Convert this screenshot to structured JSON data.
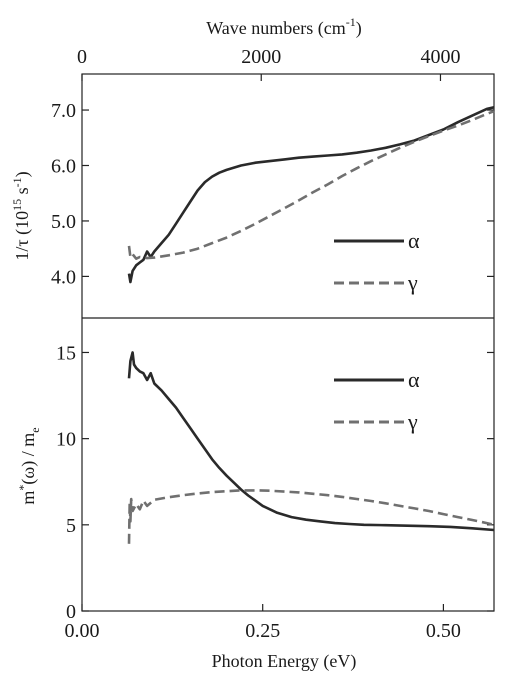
{
  "chart_data": {
    "type": "line",
    "x_axis": {
      "label": "Photon Energy (eV)",
      "lim": [
        0.0,
        0.57
      ],
      "ticks": [
        0.0,
        0.25,
        0.5
      ],
      "tick_labels": [
        "0.00",
        "0.25",
        "0.50"
      ]
    },
    "top_axis": {
      "label_main": "Wave numbers (cm",
      "label_sup": "-1",
      "label_close": ")",
      "ticks_wavenumber": [
        0,
        2000,
        4000
      ],
      "tick_labels": [
        "0",
        "2000",
        "4000"
      ]
    },
    "panels": [
      {
        "id": "scattering-rate",
        "ylabel": {
          "main": "1/τ  (10",
          "sup": "15",
          "middle": " s",
          "sup2": "-1",
          "close": ")"
        },
        "ylim": [
          3.25,
          7.65
        ],
        "yticks": [
          4.0,
          5.0,
          6.0,
          7.0
        ],
        "ytick_labels": [
          "4.0",
          "5.0",
          "6.0",
          "7.0"
        ],
        "legend_position": "right-middle",
        "series": [
          {
            "name": "α",
            "style": "solid",
            "color": "#2a2a2a",
            "x": [
              0.065,
              0.067,
              0.07,
              0.075,
              0.08,
              0.085,
              0.09,
              0.095,
              0.1,
              0.11,
              0.12,
              0.13,
              0.14,
              0.15,
              0.16,
              0.17,
              0.18,
              0.19,
              0.2,
              0.22,
              0.24,
              0.26,
              0.28,
              0.3,
              0.32,
              0.34,
              0.36,
              0.38,
              0.4,
              0.42,
              0.44,
              0.46,
              0.48,
              0.5,
              0.52,
              0.54,
              0.56,
              0.57
            ],
            "y": [
              4.05,
              3.9,
              4.1,
              4.2,
              4.25,
              4.3,
              4.45,
              4.35,
              4.45,
              4.6,
              4.75,
              4.95,
              5.15,
              5.35,
              5.55,
              5.7,
              5.8,
              5.87,
              5.92,
              6.0,
              6.05,
              6.08,
              6.11,
              6.14,
              6.16,
              6.18,
              6.2,
              6.23,
              6.27,
              6.32,
              6.38,
              6.45,
              6.55,
              6.65,
              6.78,
              6.9,
              7.02,
              7.05
            ]
          },
          {
            "name": "γ",
            "style": "dashed",
            "color": "#707070",
            "x": [
              0.065,
              0.067,
              0.07,
              0.075,
              0.08,
              0.09,
              0.1,
              0.12,
              0.14,
              0.16,
              0.18,
              0.2,
              0.22,
              0.24,
              0.26,
              0.28,
              0.3,
              0.32,
              0.34,
              0.36,
              0.38,
              0.4,
              0.42,
              0.44,
              0.46,
              0.48,
              0.5,
              0.52,
              0.54,
              0.56,
              0.57
            ],
            "y": [
              4.55,
              4.35,
              4.4,
              4.32,
              4.35,
              4.33,
              4.34,
              4.38,
              4.43,
              4.5,
              4.6,
              4.7,
              4.82,
              4.95,
              5.09,
              5.23,
              5.37,
              5.52,
              5.66,
              5.81,
              5.95,
              6.08,
              6.2,
              6.32,
              6.43,
              6.53,
              6.63,
              6.72,
              6.82,
              6.93,
              6.98
            ]
          }
        ]
      },
      {
        "id": "effective-mass",
        "ylabel": {
          "main": "m",
          "sup": "*",
          "middle": "(ω) / m",
          "sub": "e"
        },
        "ylim": [
          0,
          17
        ],
        "yticks": [
          0,
          5,
          10,
          15
        ],
        "ytick_labels": [
          "0",
          "5",
          "10",
          "15"
        ],
        "legend_position": "right-top",
        "series": [
          {
            "name": "α",
            "style": "solid",
            "color": "#2a2a2a",
            "x": [
              0.065,
              0.067,
              0.07,
              0.072,
              0.075,
              0.08,
              0.085,
              0.09,
              0.095,
              0.1,
              0.11,
              0.12,
              0.13,
              0.14,
              0.15,
              0.16,
              0.17,
              0.18,
              0.19,
              0.2,
              0.21,
              0.22,
              0.23,
              0.24,
              0.25,
              0.27,
              0.29,
              0.31,
              0.33,
              0.35,
              0.37,
              0.39,
              0.42,
              0.45,
              0.48,
              0.51,
              0.54,
              0.57
            ],
            "y": [
              13.5,
              14.5,
              15.0,
              14.3,
              14.1,
              13.9,
              13.8,
              13.4,
              13.8,
              13.2,
              12.8,
              12.3,
              11.8,
              11.2,
              10.6,
              10.0,
              9.4,
              8.8,
              8.3,
              7.85,
              7.45,
              7.05,
              6.7,
              6.4,
              6.1,
              5.7,
              5.45,
              5.3,
              5.2,
              5.1,
              5.05,
              5.0,
              4.98,
              4.95,
              4.92,
              4.88,
              4.8,
              4.7
            ]
          },
          {
            "name": "γ",
            "style": "dashed",
            "color": "#707070",
            "x": [
              0.065,
              0.066,
              0.067,
              0.068,
              0.07,
              0.075,
              0.08,
              0.085,
              0.09,
              0.1,
              0.12,
              0.14,
              0.16,
              0.18,
              0.2,
              0.22,
              0.24,
              0.26,
              0.28,
              0.3,
              0.32,
              0.34,
              0.36,
              0.38,
              0.4,
              0.42,
              0.44,
              0.46,
              0.48,
              0.5,
              0.52,
              0.54,
              0.56,
              0.57
            ],
            "y": [
              3.9,
              6.3,
              5.2,
              6.5,
              5.8,
              6.2,
              5.9,
              6.4,
              6.1,
              6.45,
              6.6,
              6.72,
              6.82,
              6.9,
              6.95,
              7.0,
              7.0,
              6.98,
              6.93,
              6.88,
              6.8,
              6.72,
              6.62,
              6.5,
              6.38,
              6.25,
              6.1,
              5.95,
              5.8,
              5.62,
              5.45,
              5.28,
              5.1,
              5.0
            ]
          }
        ]
      }
    ]
  }
}
